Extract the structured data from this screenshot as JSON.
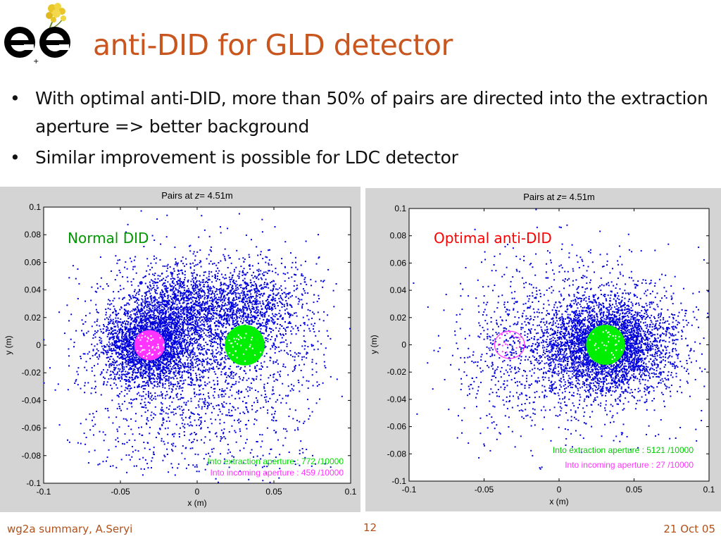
{
  "slide": {
    "title": "anti-DID for GLD detector",
    "bullets": [
      "With optimal anti-DID, more than 50% of pairs are directed into the extraction aperture  => better background",
      "Similar improvement is possible for LDC detector"
    ],
    "footer_left": "wg2a summary, A.Seryi",
    "footer_center": "12",
    "footer_right": "21 Oct 05"
  },
  "logo": {
    "icon": "ee-logo-with-flower",
    "text": "ee"
  },
  "colors": {
    "title": "#c8561e",
    "points": "#0000dd",
    "extraction": "#00ee00",
    "incoming": "#ff33ff",
    "label_normal": "#009900",
    "label_anti": "#ff0000",
    "panel": "#d4d4d4"
  },
  "chart_data": [
    {
      "type": "scatter",
      "title": "Pairs at z= 4.51m",
      "title_prefix": "Pairs at ",
      "title_var": "z",
      "title_suffix": "= 4.51m",
      "annotation": "Normal DID",
      "xlabel": "x (m)",
      "ylabel": "y (m)",
      "xlim": [
        -0.1,
        0.1
      ],
      "ylim": [
        -0.1,
        0.1
      ],
      "xticks": [
        "-0.1",
        "-0.05",
        "0",
        "0.05",
        "0.1"
      ],
      "yticks": [
        "0.1",
        "0.08",
        "0.06",
        "0.04",
        "0.02",
        "0",
        "-0.02",
        "-0.04",
        "-0.06",
        "-0.08",
        "-0.1"
      ],
      "grid": false,
      "series": [
        {
          "name": "Into extraction aperture",
          "count_text": "Into extraction aperture : 772 /10000",
          "center": [
            0.031,
            0.0
          ],
          "radius": 0.013
        },
        {
          "name": "Into incoming aperture",
          "count_text": "Into incoming aperture : 459 /10000",
          "center": [
            -0.031,
            0.0
          ],
          "radius": 0.01
        }
      ]
    },
    {
      "type": "scatter",
      "title": "Pairs at z= 4.51m",
      "title_prefix": "Pairs at ",
      "title_var": "z",
      "title_suffix": "= 4.51m",
      "annotation": "Optimal anti-DID",
      "xlabel": "x (m)",
      "ylabel": "y (m)",
      "xlim": [
        -0.1,
        0.1
      ],
      "ylim": [
        -0.1,
        0.1
      ],
      "xticks": [
        "-0.1",
        "-0.05",
        "0",
        "0.05",
        "0.1"
      ],
      "yticks": [
        "0.1",
        "0.08",
        "0.06",
        "0.04",
        "0.02",
        "0",
        "-0.02",
        "-0.04",
        "-0.06",
        "-0.08",
        "-0.1"
      ],
      "grid": false,
      "series": [
        {
          "name": "Into extraction aperture",
          "count_text": "Into extraction aperture : 5121 /10000",
          "center": [
            0.031,
            0.0
          ],
          "radius": 0.013
        },
        {
          "name": "Into incoming aperture",
          "count_text": "Into incoming aperture : 27 /10000",
          "center": [
            -0.033,
            0.0
          ],
          "radius": 0.01
        }
      ]
    }
  ]
}
